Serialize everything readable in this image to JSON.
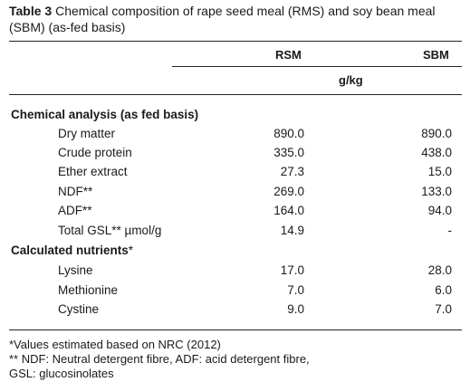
{
  "caption": {
    "label": "Table 3",
    "text": " Chemical composition of rape seed meal (RMS) and soy bean meal (SBM) (as-fed basis)"
  },
  "columns": {
    "rsm": "RSM",
    "sbm": "SBM",
    "unit": "g/kg"
  },
  "sections": [
    {
      "title": "Chemical analysis (as fed basis)",
      "mark": "",
      "rows": [
        {
          "label": "Dry matter",
          "rsm": "890.0",
          "sbm": "890.0"
        },
        {
          "label": "Crude protein",
          "rsm": "335.0",
          "sbm": "438.0"
        },
        {
          "label": "Ether extract",
          "rsm": "27.3",
          "sbm": "15.0"
        },
        {
          "label": "NDF**",
          "rsm": "269.0",
          "sbm": "133.0"
        },
        {
          "label": "ADF**",
          "rsm": "164.0",
          "sbm": "94.0"
        },
        {
          "label": "Total GSL** µmol/g",
          "rsm": "14.9",
          "sbm": "-"
        }
      ]
    },
    {
      "title": "Calculated nutrients",
      "mark": "*",
      "rows": [
        {
          "label": "Lysine",
          "rsm": "17.0",
          "sbm": "28.0"
        },
        {
          "label": "Methionine",
          "rsm": "7.0",
          "sbm": "6.0"
        },
        {
          "label": "Cystine",
          "rsm": "9.0",
          "sbm": "7.0"
        }
      ]
    }
  ],
  "footnotes": [
    "*Values estimated based on NRC (2012)",
    "** NDF: Neutral detergent fibre, ADF: acid detergent fibre,",
    "GSL: glucosinolates"
  ]
}
